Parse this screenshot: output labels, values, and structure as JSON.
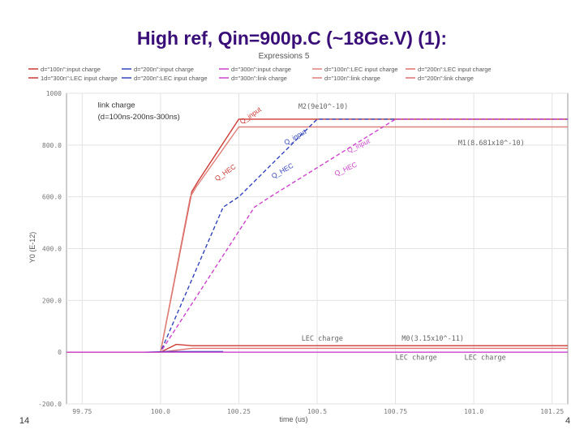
{
  "slide": {
    "title": "High ref, Qin=900p.C (~18Ge.V) (1):",
    "page_left": "14",
    "page_right": "4"
  },
  "chart_data": {
    "type": "line",
    "title": "Expressions 5",
    "xlabel": "time (us)",
    "ylabel": "Y0 (E-12)",
    "xlim": [
      99.7,
      101.3
    ],
    "ylim": [
      -200,
      1000
    ],
    "xticks": [
      "99.75",
      "100.0",
      "100.25",
      "100.5",
      "100.75",
      "101.0",
      "101.25"
    ],
    "yticks": [
      "-200.0",
      "0",
      "200.0",
      "400.0",
      "600.0",
      "800.0",
      "1000"
    ],
    "grid": true,
    "legend": {
      "placement": "top",
      "entries": [
        "d=\"100n\":input charge",
        "d=\"200n\":input charge",
        "d=\"300n\":input charge",
        "d=\"100n\":LEC input charge",
        "d=\"200n\":LEC input charge",
        "1d=\"300n\":LEC input charge",
        "d=\"200n\":LEC input charge",
        "d=\"300n\":link charge",
        "d=\"100n\":link charge",
        "d=\"200n\":link charge"
      ]
    },
    "series": [
      {
        "color": "#cc3a33",
        "x": [
          99.7,
          100.0,
          100.1,
          100.12,
          100.25,
          101.3
        ],
        "y": [
          0,
          0,
          620,
          660,
          900,
          900
        ]
      },
      {
        "color": "#e0807a",
        "x": [
          99.7,
          100.0,
          100.095,
          100.115,
          100.25,
          101.3
        ],
        "y": [
          0,
          0,
          600,
          640,
          870,
          870
        ]
      },
      {
        "color": "#3344bb",
        "x": [
          99.7,
          100.0,
          100.2,
          100.25,
          100.5,
          101.3
        ],
        "y": [
          0,
          0,
          560,
          600,
          900,
          900
        ]
      },
      {
        "color": "#cc44cc",
        "x": [
          99.7,
          100.0,
          100.3,
          100.35,
          100.75,
          101.3
        ],
        "y": [
          0,
          0,
          560,
          600,
          900,
          900
        ]
      },
      {
        "color": "#cc3a33",
        "x": [
          99.7,
          100.0,
          100.05,
          100.1,
          101.3
        ],
        "y": [
          0,
          0,
          30,
          25,
          25
        ]
      },
      {
        "color": "#e07070",
        "x": [
          99.7,
          100.0,
          100.1,
          101.3
        ],
        "y": [
          0,
          0,
          15,
          15
        ]
      },
      {
        "color": "#3344bb",
        "x": [
          99.95,
          100.02,
          100.2
        ],
        "y": [
          0,
          2,
          2
        ]
      },
      {
        "color": "#cc44cc",
        "x": [
          99.7,
          101.3
        ],
        "y": [
          0,
          0
        ]
      }
    ],
    "annotations": [
      {
        "text": "link charge",
        "x": 99.8,
        "y": 945
      },
      {
        "text": "(d=100ns-200ns-300ns)",
        "x": 99.8,
        "y": 900
      },
      {
        "text": "Q_input",
        "x": 100.26,
        "y": 880
      },
      {
        "text": "Q_HEC",
        "x": 100.18,
        "y": 660
      },
      {
        "text": "Q_input",
        "x": 100.4,
        "y": 800
      },
      {
        "text": "Q_HEC",
        "x": 100.36,
        "y": 670
      },
      {
        "text": "Q_input",
        "x": 100.6,
        "y": 770
      },
      {
        "text": "Q_HEC",
        "x": 100.56,
        "y": 680
      },
      {
        "text": "M2(9e10^-10)",
        "x": 100.44,
        "y": 940
      },
      {
        "text": "M1(8.681x10^-10)",
        "x": 100.95,
        "y": 800
      },
      {
        "text": "LEC charge",
        "x": 100.45,
        "y": 45
      },
      {
        "text": "M0(3.15x10^-11)",
        "x": 100.77,
        "y": 45
      },
      {
        "text": "LEC charge",
        "x": 100.75,
        "y": -30
      },
      {
        "text": "LEC charge",
        "x": 100.97,
        "y": -30
      }
    ]
  }
}
